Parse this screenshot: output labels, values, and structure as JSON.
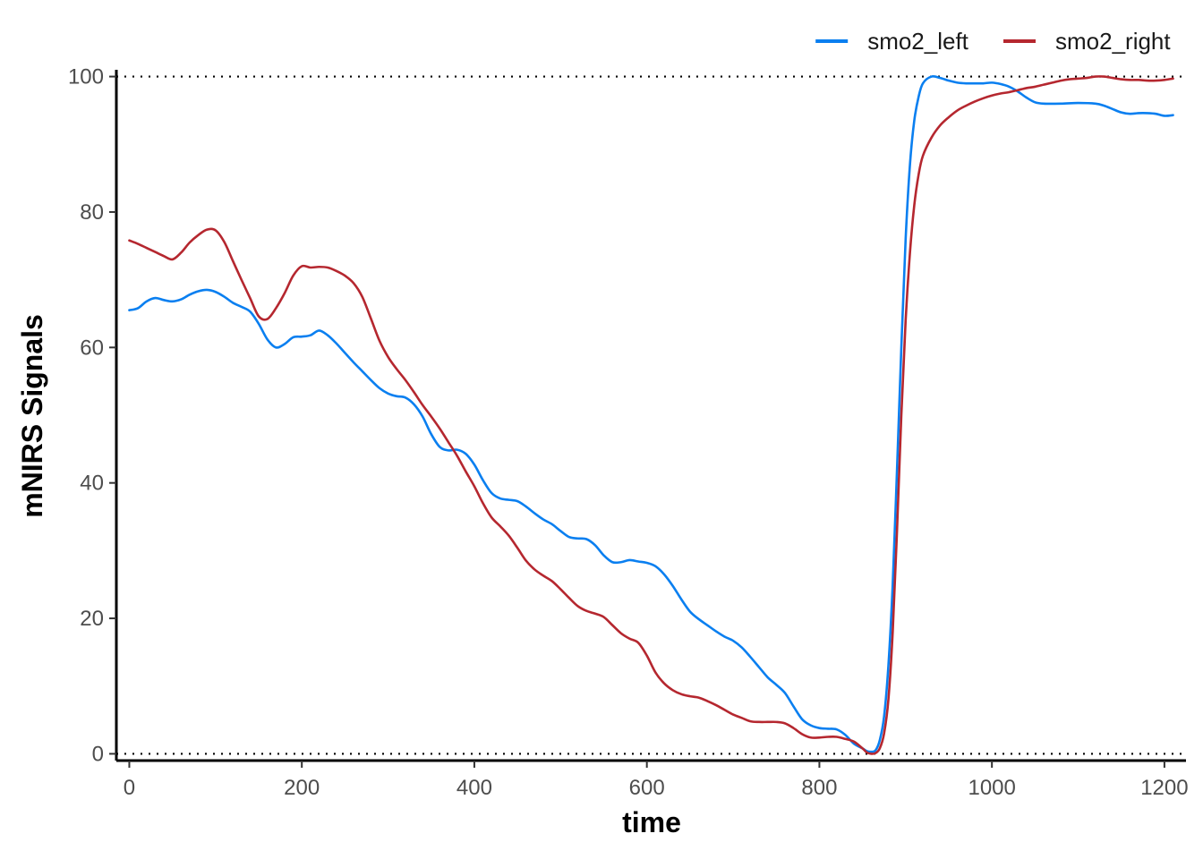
{
  "chart_data": {
    "type": "line",
    "xlabel": "time",
    "ylabel": "mNIRS Signals",
    "xlim": [
      -15,
      1225
    ],
    "ylim": [
      -1,
      101
    ],
    "x_ticks": [
      0,
      200,
      400,
      600,
      800,
      1000,
      1200
    ],
    "y_ticks": [
      0,
      20,
      40,
      60,
      80,
      100
    ],
    "reference_lines": [
      0,
      100
    ],
    "grid": false,
    "legend_position": "top-right",
    "series": [
      {
        "name": "smo2_left",
        "color": "#0a7ff0",
        "points": [
          [
            0,
            65.5
          ],
          [
            10,
            65.8
          ],
          [
            20,
            66.8
          ],
          [
            30,
            67.3
          ],
          [
            40,
            67.0
          ],
          [
            50,
            66.8
          ],
          [
            60,
            67.1
          ],
          [
            70,
            67.8
          ],
          [
            80,
            68.3
          ],
          [
            90,
            68.5
          ],
          [
            100,
            68.2
          ],
          [
            110,
            67.5
          ],
          [
            120,
            66.6
          ],
          [
            130,
            66.0
          ],
          [
            140,
            65.3
          ],
          [
            150,
            63.5
          ],
          [
            160,
            61.2
          ],
          [
            170,
            60.0
          ],
          [
            180,
            60.5
          ],
          [
            190,
            61.5
          ],
          [
            200,
            61.6
          ],
          [
            210,
            61.8
          ],
          [
            220,
            62.5
          ],
          [
            230,
            61.8
          ],
          [
            240,
            60.6
          ],
          [
            250,
            59.2
          ],
          [
            260,
            57.8
          ],
          [
            270,
            56.5
          ],
          [
            280,
            55.2
          ],
          [
            290,
            54.0
          ],
          [
            300,
            53.2
          ],
          [
            310,
            52.8
          ],
          [
            320,
            52.6
          ],
          [
            330,
            51.6
          ],
          [
            340,
            49.8
          ],
          [
            350,
            47.2
          ],
          [
            360,
            45.3
          ],
          [
            370,
            44.8
          ],
          [
            380,
            44.9
          ],
          [
            390,
            44.3
          ],
          [
            400,
            42.7
          ],
          [
            410,
            40.4
          ],
          [
            420,
            38.5
          ],
          [
            430,
            37.7
          ],
          [
            440,
            37.5
          ],
          [
            450,
            37.3
          ],
          [
            460,
            36.5
          ],
          [
            470,
            35.5
          ],
          [
            480,
            34.6
          ],
          [
            490,
            33.9
          ],
          [
            500,
            32.9
          ],
          [
            510,
            32.0
          ],
          [
            520,
            31.8
          ],
          [
            530,
            31.7
          ],
          [
            540,
            30.8
          ],
          [
            550,
            29.3
          ],
          [
            560,
            28.3
          ],
          [
            570,
            28.3
          ],
          [
            580,
            28.6
          ],
          [
            590,
            28.4
          ],
          [
            600,
            28.2
          ],
          [
            610,
            27.7
          ],
          [
            620,
            26.5
          ],
          [
            630,
            24.8
          ],
          [
            640,
            22.8
          ],
          [
            650,
            21.0
          ],
          [
            660,
            19.9
          ],
          [
            670,
            19.0
          ],
          [
            680,
            18.1
          ],
          [
            690,
            17.3
          ],
          [
            700,
            16.7
          ],
          [
            710,
            15.7
          ],
          [
            720,
            14.3
          ],
          [
            730,
            12.8
          ],
          [
            740,
            11.3
          ],
          [
            750,
            10.2
          ],
          [
            760,
            9.0
          ],
          [
            770,
            7.0
          ],
          [
            780,
            5.1
          ],
          [
            790,
            4.2
          ],
          [
            800,
            3.8
          ],
          [
            810,
            3.7
          ],
          [
            820,
            3.6
          ],
          [
            830,
            2.8
          ],
          [
            840,
            1.5
          ],
          [
            850,
            0.8
          ],
          [
            855,
            0.4
          ],
          [
            860,
            0.3
          ],
          [
            865,
            0.5
          ],
          [
            870,
            2.0
          ],
          [
            875,
            5.5
          ],
          [
            880,
            13.0
          ],
          [
            885,
            25.0
          ],
          [
            890,
            42.0
          ],
          [
            895,
            60.0
          ],
          [
            900,
            76.0
          ],
          [
            905,
            87.0
          ],
          [
            910,
            93.5
          ],
          [
            915,
            97.0
          ],
          [
            920,
            99.0
          ],
          [
            930,
            100.0
          ],
          [
            940,
            99.8
          ],
          [
            950,
            99.4
          ],
          [
            960,
            99.1
          ],
          [
            970,
            99.0
          ],
          [
            980,
            99.0
          ],
          [
            990,
            99.0
          ],
          [
            1000,
            99.1
          ],
          [
            1010,
            98.9
          ],
          [
            1020,
            98.5
          ],
          [
            1030,
            97.8
          ],
          [
            1040,
            96.9
          ],
          [
            1050,
            96.2
          ],
          [
            1060,
            96.0
          ],
          [
            1080,
            96.0
          ],
          [
            1100,
            96.1
          ],
          [
            1120,
            96.0
          ],
          [
            1130,
            95.7
          ],
          [
            1140,
            95.2
          ],
          [
            1150,
            94.7
          ],
          [
            1160,
            94.5
          ],
          [
            1170,
            94.6
          ],
          [
            1180,
            94.6
          ],
          [
            1190,
            94.5
          ],
          [
            1200,
            94.2
          ],
          [
            1210,
            94.3
          ]
        ]
      },
      {
        "name": "smo2_right",
        "color": "#b5272f",
        "points": [
          [
            0,
            75.8
          ],
          [
            10,
            75.3
          ],
          [
            20,
            74.7
          ],
          [
            30,
            74.1
          ],
          [
            40,
            73.5
          ],
          [
            50,
            73.0
          ],
          [
            60,
            74.0
          ],
          [
            70,
            75.5
          ],
          [
            80,
            76.6
          ],
          [
            90,
            77.4
          ],
          [
            100,
            77.3
          ],
          [
            110,
            75.6
          ],
          [
            120,
            72.8
          ],
          [
            130,
            70.0
          ],
          [
            140,
            67.3
          ],
          [
            150,
            64.6
          ],
          [
            160,
            64.2
          ],
          [
            170,
            65.8
          ],
          [
            180,
            68.0
          ],
          [
            190,
            70.6
          ],
          [
            200,
            72.0
          ],
          [
            210,
            71.8
          ],
          [
            220,
            71.9
          ],
          [
            230,
            71.8
          ],
          [
            240,
            71.3
          ],
          [
            250,
            70.6
          ],
          [
            260,
            69.5
          ],
          [
            270,
            67.5
          ],
          [
            280,
            64.3
          ],
          [
            290,
            61.0
          ],
          [
            300,
            58.6
          ],
          [
            310,
            56.8
          ],
          [
            320,
            55.2
          ],
          [
            330,
            53.4
          ],
          [
            340,
            51.5
          ],
          [
            350,
            49.8
          ],
          [
            360,
            48.0
          ],
          [
            370,
            46.0
          ],
          [
            380,
            44.0
          ],
          [
            390,
            41.7
          ],
          [
            400,
            39.5
          ],
          [
            410,
            37.0
          ],
          [
            420,
            34.9
          ],
          [
            430,
            33.6
          ],
          [
            440,
            32.2
          ],
          [
            450,
            30.4
          ],
          [
            460,
            28.5
          ],
          [
            470,
            27.2
          ],
          [
            480,
            26.3
          ],
          [
            490,
            25.5
          ],
          [
            500,
            24.3
          ],
          [
            510,
            23.0
          ],
          [
            520,
            21.8
          ],
          [
            530,
            21.1
          ],
          [
            540,
            20.7
          ],
          [
            550,
            20.2
          ],
          [
            560,
            19.0
          ],
          [
            570,
            17.8
          ],
          [
            580,
            17.0
          ],
          [
            590,
            16.4
          ],
          [
            600,
            14.5
          ],
          [
            610,
            12.0
          ],
          [
            620,
            10.4
          ],
          [
            630,
            9.4
          ],
          [
            640,
            8.8
          ],
          [
            650,
            8.5
          ],
          [
            660,
            8.3
          ],
          [
            670,
            7.8
          ],
          [
            680,
            7.2
          ],
          [
            690,
            6.5
          ],
          [
            700,
            5.8
          ],
          [
            710,
            5.3
          ],
          [
            720,
            4.8
          ],
          [
            730,
            4.7
          ],
          [
            740,
            4.7
          ],
          [
            750,
            4.7
          ],
          [
            760,
            4.5
          ],
          [
            770,
            3.8
          ],
          [
            780,
            2.9
          ],
          [
            790,
            2.4
          ],
          [
            800,
            2.4
          ],
          [
            810,
            2.5
          ],
          [
            820,
            2.5
          ],
          [
            830,
            2.2
          ],
          [
            840,
            1.8
          ],
          [
            850,
            0.8
          ],
          [
            855,
            0.2
          ],
          [
            860,
            0.0
          ],
          [
            865,
            0.1
          ],
          [
            870,
            0.8
          ],
          [
            875,
            3.0
          ],
          [
            880,
            8.0
          ],
          [
            885,
            18.0
          ],
          [
            890,
            33.0
          ],
          [
            895,
            50.0
          ],
          [
            900,
            64.0
          ],
          [
            905,
            74.0
          ],
          [
            910,
            81.0
          ],
          [
            915,
            85.5
          ],
          [
            920,
            88.3
          ],
          [
            930,
            91.0
          ],
          [
            940,
            92.8
          ],
          [
            950,
            94.0
          ],
          [
            960,
            95.0
          ],
          [
            970,
            95.7
          ],
          [
            980,
            96.3
          ],
          [
            990,
            96.8
          ],
          [
            1000,
            97.2
          ],
          [
            1010,
            97.5
          ],
          [
            1020,
            97.7
          ],
          [
            1030,
            98.0
          ],
          [
            1040,
            98.3
          ],
          [
            1050,
            98.5
          ],
          [
            1060,
            98.8
          ],
          [
            1070,
            99.1
          ],
          [
            1080,
            99.4
          ],
          [
            1090,
            99.6
          ],
          [
            1100,
            99.7
          ],
          [
            1110,
            99.8
          ],
          [
            1120,
            100.0
          ],
          [
            1130,
            100.0
          ],
          [
            1140,
            99.8
          ],
          [
            1150,
            99.6
          ],
          [
            1160,
            99.5
          ],
          [
            1170,
            99.5
          ],
          [
            1180,
            99.4
          ],
          [
            1190,
            99.4
          ],
          [
            1200,
            99.5
          ],
          [
            1210,
            99.7
          ]
        ]
      }
    ]
  }
}
